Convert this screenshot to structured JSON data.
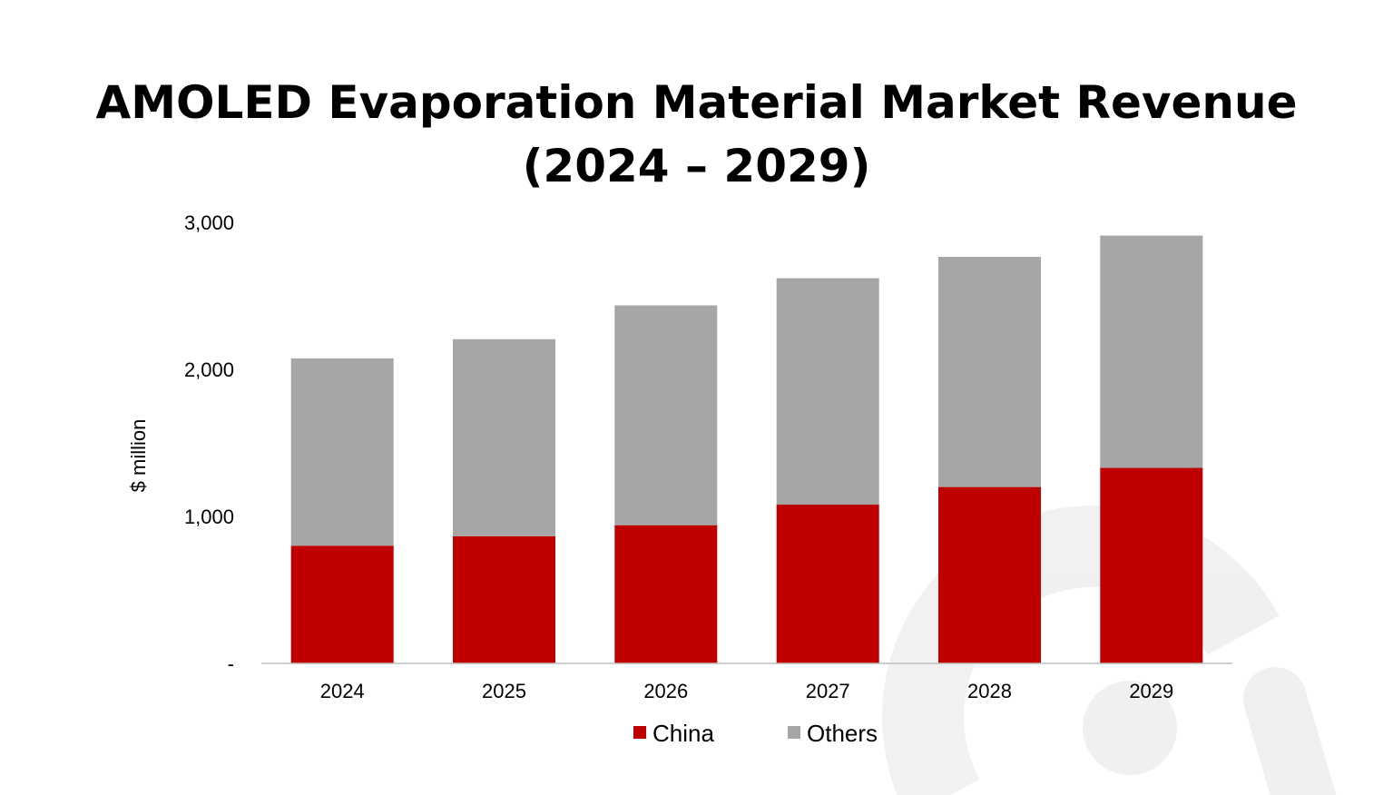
{
  "chart_data": {
    "type": "bar",
    "stacked": true,
    "title_line1": "AMOLED Evaporation Material Market Revenue",
    "title_line2": "(2024 – 2029)",
    "ylabel": "$ million",
    "xlabel": "",
    "categories": [
      "2024",
      "2025",
      "2026",
      "2027",
      "2028",
      "2029"
    ],
    "series": [
      {
        "name": "China",
        "color": "#c00000",
        "values": [
          800,
          865,
          940,
          1080,
          1200,
          1330
        ]
      },
      {
        "name": "Others",
        "color": "#a6a6a6",
        "values": [
          1275,
          1340,
          1495,
          1540,
          1565,
          1580
        ]
      }
    ],
    "ylim": [
      0,
      3000
    ],
    "yticks": [
      0,
      1000,
      2000,
      3000
    ],
    "ytick_labels": [
      "-",
      "1,000",
      "2,000",
      "3,000"
    ],
    "grid": false,
    "legend_position": "bottom",
    "watermark_color": "#b0b0b0"
  }
}
